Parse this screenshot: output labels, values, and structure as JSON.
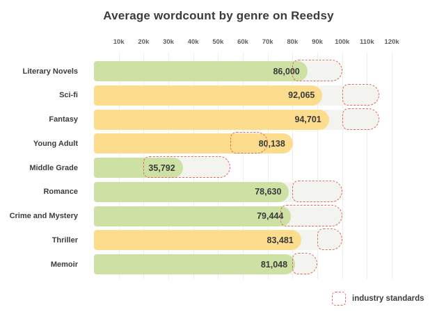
{
  "title": "Average wordcount by genre on Reedsy",
  "legend": {
    "label": "industry standards"
  },
  "chart_data": {
    "type": "bar",
    "orientation": "horizontal",
    "title": "Average wordcount by genre on Reedsy",
    "xlabel": "",
    "ylabel": "",
    "axis": {
      "tick_labels": [
        "10k",
        "20k",
        "30k",
        "40k",
        "50k",
        "60k",
        "70k",
        "80k",
        "90k",
        "100k",
        "110k",
        "120k"
      ],
      "tick_values": [
        10000,
        20000,
        30000,
        40000,
        50000,
        60000,
        70000,
        80000,
        90000,
        100000,
        110000,
        120000
      ],
      "min": 0,
      "max": 120000,
      "grid": true,
      "tick_position": "top"
    },
    "categories": [
      "Literary Novels",
      "Sci-fi",
      "Fantasy",
      "Young Adult",
      "Middle Grade",
      "Romance",
      "Crime and Mystery",
      "Thriller",
      "Memoir"
    ],
    "values": [
      86000,
      92065,
      94701,
      80138,
      35792,
      78630,
      79444,
      83481,
      81048
    ],
    "value_labels": [
      "86,000",
      "92,065",
      "94,701",
      "80,138",
      "35,792",
      "78,630",
      "79,444",
      "83,481",
      "81,048"
    ],
    "bar_colors": [
      "green",
      "yellow",
      "yellow",
      "yellow",
      "green",
      "green",
      "green",
      "yellow",
      "green"
    ],
    "industry_standards": [
      {
        "category": "Literary Novels",
        "min": 80000,
        "max": 100000
      },
      {
        "category": "Sci-fi",
        "min": 100000,
        "max": 115000
      },
      {
        "category": "Fantasy",
        "min": 100000,
        "max": 115000
      },
      {
        "category": "Young Adult",
        "min": 55000,
        "max": 70000
      },
      {
        "category": "Middle Grade",
        "min": 20000,
        "max": 55000
      },
      {
        "category": "Romance",
        "min": 80000,
        "max": 100000
      },
      {
        "category": "Crime and Mystery",
        "min": 75000,
        "max": 100000
      },
      {
        "category": "Thriller",
        "min": 90000,
        "max": 100000
      },
      {
        "category": "Memoir",
        "min": 80000,
        "max": 90000
      }
    ],
    "palette": {
      "green": "#cde1a4",
      "yellow": "#fcdd8e",
      "track": "#f3f3ef",
      "standard_outline": "#dc6a5b",
      "grid": "#ededeb",
      "text_dark": "#3c3c3c",
      "text_tick": "#606060"
    },
    "legend_entries": [
      "industry standards"
    ],
    "legend_position": "bottom-right"
  }
}
